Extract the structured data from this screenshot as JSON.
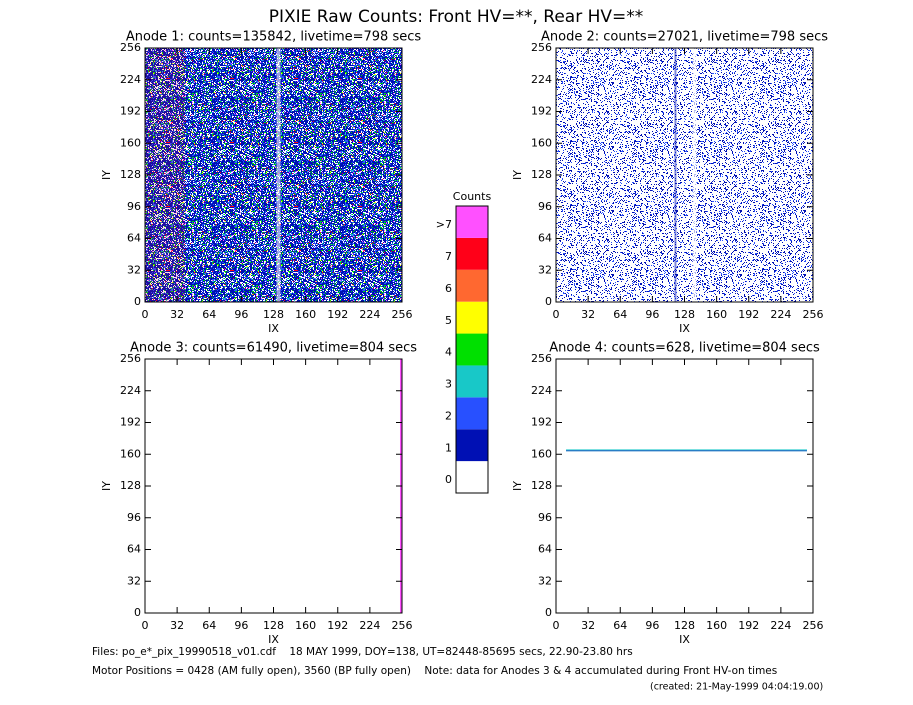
{
  "title": "PIXIE Raw Counts:  Front HV=**, Rear HV=**",
  "chart_data": [
    {
      "type": "image",
      "title": "Anode 1: counts=135842, livetime=798 secs",
      "x_label": "IX",
      "y_label": "IY",
      "xlim": [
        0,
        256
      ],
      "ylim": [
        0,
        256
      ],
      "xticks": [
        0,
        32,
        64,
        96,
        128,
        160,
        192,
        224,
        256
      ],
      "yticks": [
        0,
        32,
        64,
        96,
        128,
        160,
        192,
        224,
        256
      ]
    },
    {
      "type": "image",
      "title": "Anode 2: counts=27021, livetime=798 secs",
      "x_label": "IX",
      "y_label": "IY",
      "xlim": [
        0,
        256
      ],
      "ylim": [
        0,
        256
      ],
      "xticks": [
        0,
        32,
        64,
        96,
        128,
        160,
        192,
        224,
        256
      ],
      "yticks": [
        0,
        32,
        64,
        96,
        128,
        160,
        192,
        224,
        256
      ]
    },
    {
      "type": "image",
      "title": "Anode 3: counts=61490, livetime=804 secs",
      "x_label": "IX",
      "y_label": "IY",
      "xlim": [
        0,
        256
      ],
      "ylim": [
        0,
        256
      ],
      "xticks": [
        0,
        32,
        64,
        96,
        128,
        160,
        192,
        224,
        256
      ],
      "yticks": [
        0,
        32,
        64,
        96,
        128,
        160,
        192,
        224,
        256
      ]
    },
    {
      "type": "image",
      "title": "Anode 4: counts=628, livetime=804 secs",
      "x_label": "IX",
      "y_label": "IY",
      "xlim": [
        0,
        256
      ],
      "ylim": [
        0,
        256
      ],
      "xticks": [
        0,
        32,
        64,
        96,
        128,
        160,
        192,
        224,
        256
      ],
      "yticks": [
        0,
        32,
        64,
        96,
        128,
        160,
        192,
        224,
        256
      ]
    }
  ],
  "colorbar": {
    "title": "Counts",
    "labels": [
      "0",
      "1",
      "2",
      "3",
      "4",
      "5",
      "6",
      "7",
      ">7"
    ],
    "colors": [
      "#ffffff",
      "#0010b4",
      "#2850ff",
      "#18c8c8",
      "#00e000",
      "#ffff00",
      "#ff6830",
      "#ff0018",
      "#ff50ff"
    ]
  },
  "footer": [
    "Files: po_e*_pix_19990518_v01.cdf    18 MAY 1999, DOY=138, UT=82448-85695 secs, 22.90-23.80 hrs",
    "Motor Positions = 0428 (AM fully open), 3560 (BP fully open)    Note: data for Anodes 3 & 4 accumulated during Front HV-on times",
    "(created: 21-May-1999 04:04:19.00)"
  ]
}
